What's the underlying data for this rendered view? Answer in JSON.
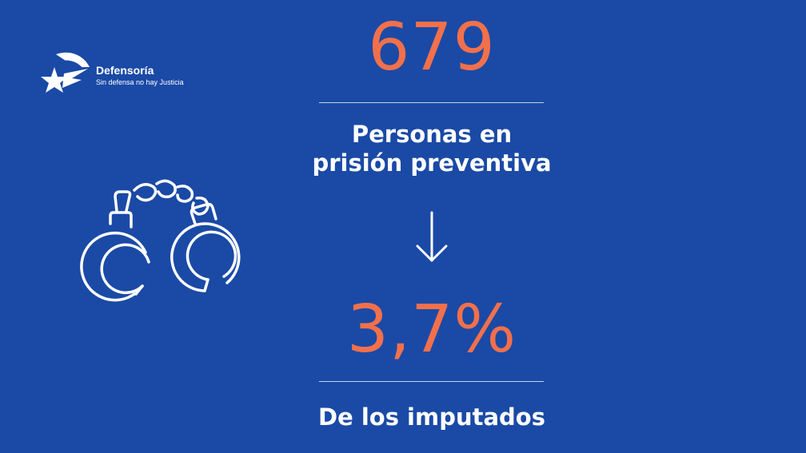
{
  "logo": {
    "name": "Defensoría",
    "tagline": "Sin defensa no hay Justicia",
    "icon": "defensoria-star-logo-icon"
  },
  "illustration": {
    "icon": "handcuffs-icon"
  },
  "stat": {
    "value": "679",
    "label_line1": "Personas en",
    "label_line2": "prisión preventiva"
  },
  "arrow": {
    "icon": "arrow-down-icon"
  },
  "share": {
    "value": "3,7%",
    "label": "De los imputados"
  },
  "colors": {
    "background": "#1a4aa6",
    "accent": "#f2704b",
    "text": "#ffffff"
  }
}
